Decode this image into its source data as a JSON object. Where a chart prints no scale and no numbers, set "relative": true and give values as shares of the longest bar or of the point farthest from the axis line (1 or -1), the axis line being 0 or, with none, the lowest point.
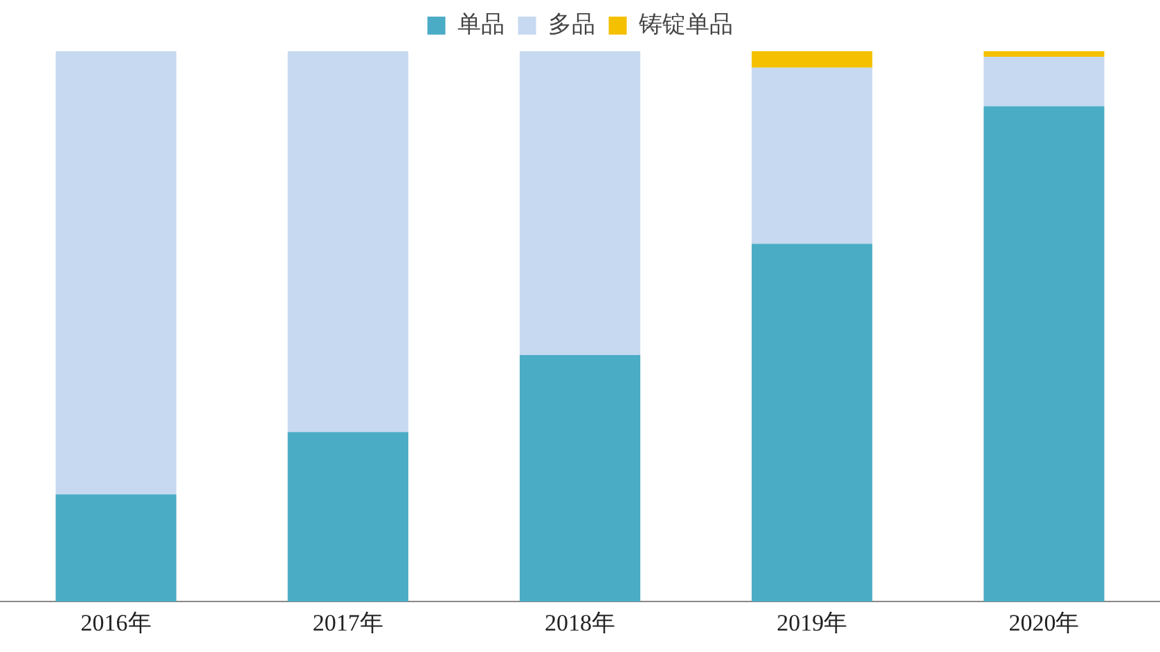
{
  "chart_data": {
    "type": "bar",
    "stacked": true,
    "relative": true,
    "legend": "top",
    "grid": false,
    "categories": [
      "2016年",
      "2017年",
      "2018年",
      "2019年",
      "2020年"
    ],
    "series": [
      {
        "name": "单品",
        "color": "#4bacc6",
        "values": [
          0.195,
          0.308,
          0.448,
          0.65,
          0.9
        ]
      },
      {
        "name": "多品",
        "color": "#c6d9f0",
        "values": [
          0.805,
          0.692,
          0.552,
          0.32,
          0.09
        ]
      },
      {
        "name": "铸锭单品",
        "color": "#f5c000",
        "values": [
          null,
          null,
          null,
          0.03,
          0.01
        ]
      }
    ]
  }
}
